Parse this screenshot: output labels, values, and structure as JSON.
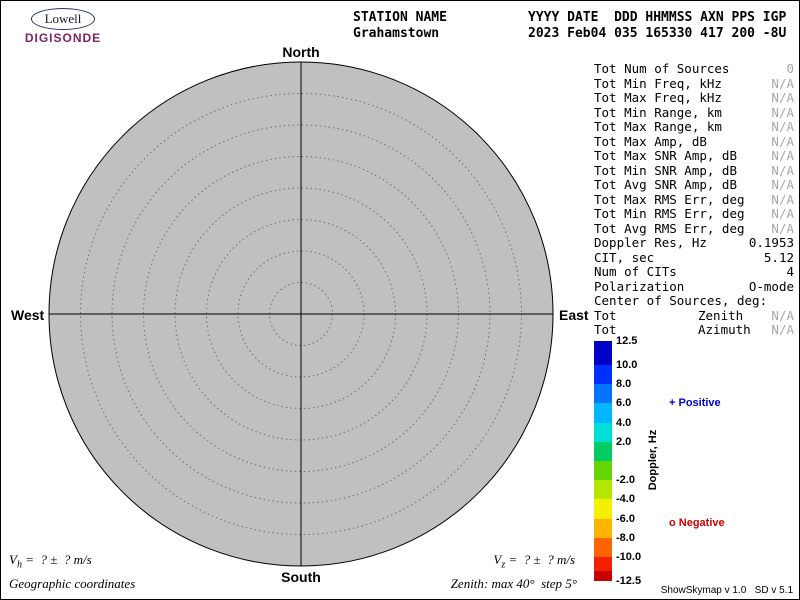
{
  "logo": {
    "brand": "Lowell",
    "product": "DIGISONDE",
    "product_color": "#7d2462"
  },
  "header": {
    "station_label": "STATION NAME",
    "station_value": "Grahamstown",
    "fields_label": "YYYY DATE  DDD HHMMSS AXN PPS IGP",
    "fields_value": "2023 Feb04 035 165330 417 200 -8U"
  },
  "compass": {
    "north": "North",
    "south": "South",
    "east": "East",
    "west": "West"
  },
  "params": [
    {
      "label": "Tot Num of Sources",
      "value": "0",
      "muted": true
    },
    {
      "label": "Tot Min Freq, kHz",
      "value": "N/A",
      "muted": true
    },
    {
      "label": "Tot Max Freq, kHz",
      "value": "N/A",
      "muted": true
    },
    {
      "label": "Tot Min Range, km",
      "value": "N/A",
      "muted": true
    },
    {
      "label": "Tot Max Range, km",
      "value": "N/A",
      "muted": true
    },
    {
      "label": "Tot Max Amp, dB",
      "value": "N/A",
      "muted": true
    },
    {
      "label": "Tot Max SNR Amp, dB",
      "value": "N/A",
      "muted": true
    },
    {
      "label": "Tot Min SNR Amp, dB",
      "value": "N/A",
      "muted": true
    },
    {
      "label": "Tot Avg SNR Amp, dB",
      "value": "N/A",
      "muted": true
    },
    {
      "label": "Tot Max RMS Err, deg",
      "value": "N/A",
      "muted": true
    },
    {
      "label": "Tot Min RMS Err, deg",
      "value": "N/A",
      "muted": true
    },
    {
      "label": "Tot Avg RMS Err, deg",
      "value": "N/A",
      "muted": true
    },
    {
      "label": "Doppler Res, Hz",
      "value": "0.1953",
      "muted": false
    },
    {
      "label": "CIT, sec",
      "value": "5.12",
      "muted": false
    },
    {
      "label": "Num of CITs",
      "value": "4",
      "muted": false
    },
    {
      "label": "Polarization",
      "value": "O-mode",
      "muted": false
    }
  ],
  "center_of_sources": {
    "heading": "Center of Sources, deg:",
    "rows": [
      {
        "label": "Tot",
        "mid": "Zenith",
        "value": "N/A",
        "muted": true
      },
      {
        "label": "Tot",
        "mid": "Azimuth",
        "value": "N/A",
        "muted": true
      }
    ]
  },
  "colorbar": {
    "title": "Doppler, Hz",
    "max": 12.5,
    "min": -12.5,
    "positive_label": "+ Positive",
    "negative_label": "o Negative",
    "positive_color": "#0000cd",
    "negative_color": "#cd0000",
    "ticks": [
      {
        "label": "12.5",
        "value": 12.5
      },
      {
        "label": "10.0",
        "value": 10
      },
      {
        "label": "8.0",
        "value": 8
      },
      {
        "label": "6.0",
        "value": 6
      },
      {
        "label": "4.0",
        "value": 4
      },
      {
        "label": "2.0",
        "value": 2
      },
      {
        "label": "-2.0",
        "value": -2
      },
      {
        "label": "-4.0",
        "value": -4
      },
      {
        "label": "-6.0",
        "value": -6
      },
      {
        "label": "-8.0",
        "value": -8
      },
      {
        "label": "-10.0",
        "value": -10
      },
      {
        "label": "-12.5",
        "value": -12.5
      }
    ],
    "segments": [
      {
        "from": 12.5,
        "to": 10,
        "color": "#0000c8"
      },
      {
        "from": 10,
        "to": 8,
        "color": "#0030ff"
      },
      {
        "from": 8,
        "to": 6,
        "color": "#0074ff"
      },
      {
        "from": 6,
        "to": 4,
        "color": "#00b8ff"
      },
      {
        "from": 4,
        "to": 2,
        "color": "#00e0d8"
      },
      {
        "from": 2,
        "to": 0,
        "color": "#00cc66"
      },
      {
        "from": 0,
        "to": -2,
        "color": "#66d400"
      },
      {
        "from": -2,
        "to": -4,
        "color": "#b4e600"
      },
      {
        "from": -4,
        "to": -6,
        "color": "#f5f000"
      },
      {
        "from": -6,
        "to": -8,
        "color": "#ffb400"
      },
      {
        "from": -8,
        "to": -10,
        "color": "#ff6400"
      },
      {
        "from": -10,
        "to": -11.5,
        "color": "#f51e00"
      },
      {
        "from": -11.5,
        "to": -12.5,
        "color": "#c80000"
      }
    ]
  },
  "footer": {
    "vh_sym": "V",
    "vh_sub": "h",
    "vh_rest": " =  ? ±  ? m/s",
    "vz_sym": "V",
    "vz_sub": "z",
    "vz_rest": " =  ? ±  ? m/s",
    "coords": "Geographic coordinates",
    "zenith_note": "Zenith: max 40°  step 5°",
    "version": "ShowSkymap v 1.0   SD v 5.1"
  },
  "chart_data": {
    "type": "scatter",
    "title": "Digisonde skymap of reflection sources (polar projection)",
    "station": "Grahamstown",
    "date": "2023 Feb04 035 165330",
    "projection": "polar",
    "compass_labels": [
      "North",
      "East",
      "South",
      "West"
    ],
    "zenith_max_deg": 40,
    "zenith_step_deg": 5,
    "rings_deg": [
      5,
      10,
      15,
      20,
      25,
      30,
      35,
      40
    ],
    "points": [],
    "num_sources": 0,
    "disk_color": "#c0c0c0",
    "colorbar": {
      "label": "Doppler, Hz",
      "min": -12.5,
      "max": 12.5,
      "tick_values": [
        12.5,
        10,
        8,
        6,
        4,
        2,
        -2,
        -4,
        -6,
        -8,
        -10,
        -12.5
      ]
    },
    "legend": {
      "positive_marker": "+",
      "negative_marker": "o"
    }
  }
}
